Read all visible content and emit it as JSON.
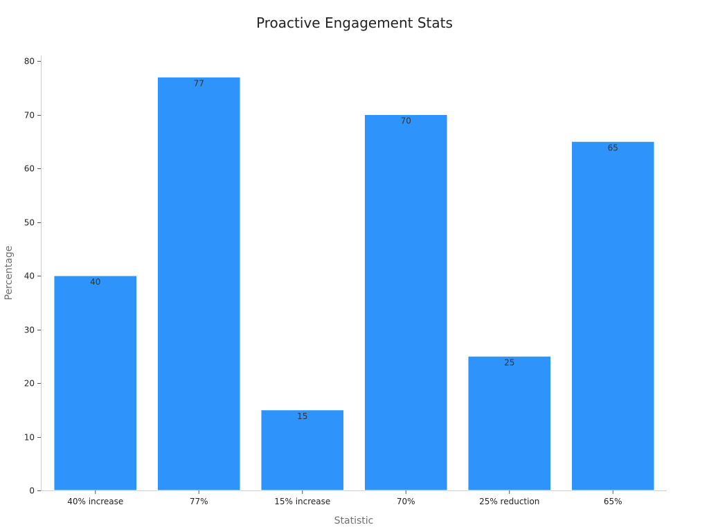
{
  "chart_data": {
    "type": "bar",
    "title": "Proactive Engagement Stats",
    "xlabel": "Statistic",
    "ylabel": "Percentage",
    "categories": [
      "40% increase",
      "77%",
      "15% increase",
      "70%",
      "25% reduction",
      "65%"
    ],
    "values": [
      40,
      77,
      15,
      70,
      25,
      65
    ],
    "ylim": [
      0,
      80
    ],
    "yticks": [
      0,
      10,
      20,
      30,
      40,
      50,
      60,
      70,
      80
    ],
    "bar_color": "#2e93fa",
    "grid": false,
    "legend": "none"
  }
}
